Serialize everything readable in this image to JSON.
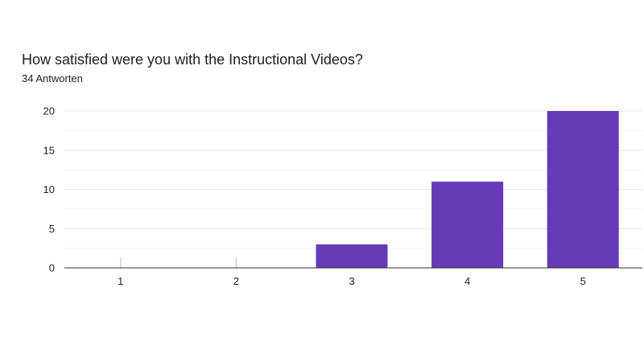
{
  "title": "How satisfied were you with the Instructional Videos?",
  "subtitle": "34 Antworten",
  "colors": {
    "bar": "#673ab7",
    "gridline": "#e6e6e6",
    "axis": "#333333"
  },
  "chart_data": {
    "type": "bar",
    "title": "How satisfied were you with the Instructional Videos?",
    "subtitle": "34 Antworten",
    "categories": [
      "1",
      "2",
      "3",
      "4",
      "5"
    ],
    "values": [
      0,
      0,
      3,
      11,
      20
    ],
    "ylim": [
      0,
      20
    ],
    "yticks": [
      0,
      5,
      10,
      15,
      20
    ],
    "grid": true,
    "legend": "none"
  }
}
